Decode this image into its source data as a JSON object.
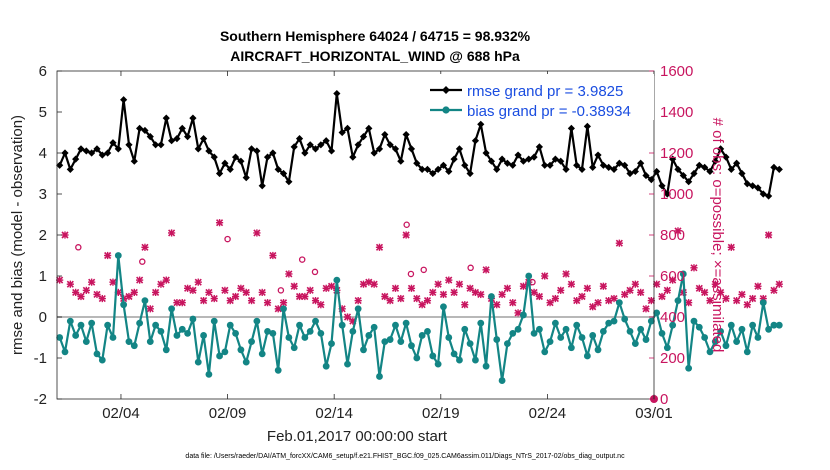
{
  "chart_data": {
    "type": "line",
    "title": "Southern Hemisphere 64024 / 64715 = 98.932%",
    "subtitle": "AIRCRAFT_HORIZONTAL_WIND @ 688 hPa",
    "xlabel": "Feb.01,2017 00:00:00 start",
    "ylabel": "rmse and bias (model - observation)",
    "ylabel_right": "# of obs: o=possible; ×=assimilated",
    "footnote": "data file: /Users/raeder/DAI/ATM_forcXX/CAM6_setup/f.e21.FHIST_BGC.f09_025.CAM6assim.011/Diags_NTrS_2017-02/obs_diag_output.nc",
    "xlim": [
      1.0,
      29.0
    ],
    "ylim": [
      -2,
      6
    ],
    "ylim_right": [
      0,
      1600
    ],
    "xticks": [
      {
        "value": 4,
        "label": "02/04"
      },
      {
        "value": 9,
        "label": "02/09"
      },
      {
        "value": 14,
        "label": "02/14"
      },
      {
        "value": 19,
        "label": "02/19"
      },
      {
        "value": 24,
        "label": "02/24"
      },
      {
        "value": 29,
        "label": "03/01"
      }
    ],
    "yticks_left": [
      {
        "value": -2,
        "label": "-2"
      },
      {
        "value": -1,
        "label": "-1"
      },
      {
        "value": 0,
        "label": "0"
      },
      {
        "value": 1,
        "label": "1"
      },
      {
        "value": 2,
        "label": "2"
      },
      {
        "value": 3,
        "label": "3"
      },
      {
        "value": 4,
        "label": "4"
      },
      {
        "value": 5,
        "label": "5"
      },
      {
        "value": 6,
        "label": "6"
      }
    ],
    "yticks_right": [
      {
        "value": 0,
        "label": "0"
      },
      {
        "value": 200,
        "label": "200"
      },
      {
        "value": 400,
        "label": "400"
      },
      {
        "value": 600,
        "label": "600"
      },
      {
        "value": 800,
        "label": "800"
      },
      {
        "value": 1000,
        "label": "1000"
      },
      {
        "value": 1200,
        "label": "1200"
      },
      {
        "value": 1400,
        "label": "1400"
      },
      {
        "value": 1600,
        "label": "1600"
      }
    ],
    "x_start": 1.125,
    "x_step": 0.25,
    "series": [
      {
        "name": "rmse grand pr = 3.9825",
        "color": "#000000",
        "marker": "diamond",
        "values": [
          3.7,
          4.0,
          3.6,
          3.85,
          4.1,
          4.05,
          4.0,
          4.1,
          3.95,
          4.0,
          4.25,
          4.1,
          5.3,
          4.2,
          3.8,
          4.6,
          4.55,
          4.4,
          4.2,
          4.2,
          4.85,
          4.3,
          4.35,
          4.6,
          4.4,
          4.85,
          4.1,
          4.35,
          4.05,
          3.9,
          3.5,
          3.75,
          3.6,
          3.9,
          3.8,
          3.4,
          4.1,
          4.05,
          3.2,
          3.9,
          4.0,
          3.6,
          3.5,
          3.3,
          4.15,
          4.35,
          4.0,
          4.2,
          4.1,
          4.2,
          4.3,
          4.05,
          5.45,
          4.5,
          4.6,
          3.9,
          4.2,
          4.4,
          4.6,
          4.0,
          4.1,
          4.45,
          4.2,
          4.1,
          3.8,
          4.45,
          4.1,
          3.75,
          3.6,
          3.6,
          3.5,
          3.6,
          3.7,
          3.55,
          3.85,
          4.1,
          3.7,
          3.5,
          4.3,
          4.7,
          4.0,
          3.8,
          3.6,
          3.85,
          3.75,
          3.7,
          3.95,
          3.8,
          3.85,
          3.9,
          4.15,
          3.7,
          3.7,
          3.85,
          3.8,
          3.6,
          4.6,
          3.7,
          3.6,
          4.65,
          3.65,
          3.95,
          3.7,
          3.65,
          3.6,
          3.75,
          3.7,
          3.5,
          3.55,
          3.75,
          3.45,
          3.35,
          3.55,
          3.2,
          3.0,
          3.85,
          3.6,
          3.45,
          3.3,
          3.5,
          3.7,
          3.65,
          3.55,
          3.8,
          4.1,
          3.9,
          3.6,
          3.75,
          3.5,
          3.25,
          3.2,
          3.15,
          3.0,
          2.95,
          3.65,
          3.6
        ]
      },
      {
        "name": "bias grand pr = -0.38934",
        "color": "#138585",
        "marker": "circle",
        "values": [
          -0.5,
          -0.85,
          -0.1,
          -0.45,
          -0.2,
          -0.6,
          -0.15,
          -0.9,
          -1.05,
          -0.2,
          -0.5,
          1.5,
          0.3,
          -0.6,
          -0.7,
          -0.15,
          0.4,
          -0.6,
          -0.2,
          -0.35,
          -0.8,
          0.2,
          -0.45,
          -0.3,
          -0.4,
          -0.05,
          -1.1,
          -0.45,
          -1.4,
          -0.1,
          -0.95,
          -0.85,
          -0.2,
          -0.4,
          -0.8,
          -1.1,
          -0.6,
          -0.1,
          -0.9,
          -0.35,
          -0.4,
          -1.3,
          0.2,
          -0.5,
          -0.75,
          -0.2,
          -0.5,
          -0.35,
          -0.1,
          -0.4,
          -1.2,
          -0.65,
          0.9,
          -0.2,
          -1.15,
          -0.35,
          0.2,
          -0.8,
          -0.45,
          -0.25,
          -1.45,
          -0.6,
          -0.55,
          -0.2,
          -0.6,
          -0.15,
          -0.7,
          -1.0,
          -0.45,
          -0.35,
          -0.95,
          -1.15,
          0.25,
          -0.5,
          -0.9,
          -1.05,
          -0.3,
          -0.65,
          -1.05,
          -0.15,
          -1.2,
          0.5,
          -0.55,
          -1.55,
          -0.65,
          -0.4,
          -0.3,
          0.05,
          1.0,
          -0.4,
          -0.3,
          -0.85,
          -0.6,
          -0.15,
          -0.5,
          -0.3,
          -0.75,
          -0.2,
          -0.5,
          -0.95,
          -0.45,
          -0.8,
          -0.35,
          -0.15,
          -0.1,
          0.35,
          -0.05,
          -0.35,
          -0.65,
          -0.3,
          -0.55,
          -0.1,
          0.1,
          -0.4,
          -0.75,
          -0.2,
          0.4,
          1.05,
          -1.25,
          -0.1,
          -0.25,
          -0.5,
          -0.85,
          -0.6,
          -0.35,
          -0.7,
          -0.2,
          -0.6,
          -0.3,
          -0.85,
          -0.2,
          -0.5,
          0.35,
          -0.3,
          -0.2,
          -0.2
        ]
      }
    ],
    "obs_possible": {
      "name": "possible",
      "marker": "o",
      "color": "#c8155f",
      "points": [
        [
          2.0,
          740
        ],
        [
          5.0,
          670
        ],
        [
          9.0,
          780
        ],
        [
          12.5,
          680
        ],
        [
          13.1,
          620
        ],
        [
          17.4,
          850
        ],
        [
          17.6,
          610
        ],
        [
          18.2,
          630
        ],
        [
          20.4,
          640
        ],
        [
          23.3,
          570
        ],
        [
          11.5,
          530
        ]
      ]
    },
    "obs_assimilated": {
      "name": "assimilated",
      "marker": "x",
      "color": "#c8155f",
      "values": [
        580,
        800,
        560,
        520,
        500,
        530,
        570,
        510,
        490,
        700,
        570,
        520,
        490,
        500,
        520,
        580,
        740,
        440,
        520,
        560,
        580,
        810,
        470,
        470,
        540,
        530,
        570,
        480,
        520,
        490,
        860,
        530,
        480,
        500,
        540,
        520,
        480,
        810,
        520,
        470,
        700,
        440,
        470,
        610,
        550,
        500,
        500,
        530,
        480,
        460,
        540,
        550,
        530,
        440,
        400,
        380,
        480,
        560,
        570,
        560,
        740,
        500,
        480,
        540,
        490,
        800,
        540,
        490,
        460,
        480,
        520,
        560,
        510,
        580,
        520,
        560,
        460,
        540,
        520,
        510,
        630,
        490,
        460,
        510,
        540,
        470,
        420,
        550,
        570,
        520,
        500,
        600,
        470,
        490,
        530,
        610,
        560,
        480,
        500,
        540,
        450,
        470,
        550,
        480,
        490,
        760,
        510,
        530,
        560,
        520,
        440,
        480,
        560,
        500,
        530,
        580,
        820,
        520,
        470,
        640,
        540,
        520,
        480,
        560,
        520,
        490,
        740,
        480,
        510,
        460,
        490,
        550,
        490,
        800,
        530,
        560
      ]
    }
  }
}
